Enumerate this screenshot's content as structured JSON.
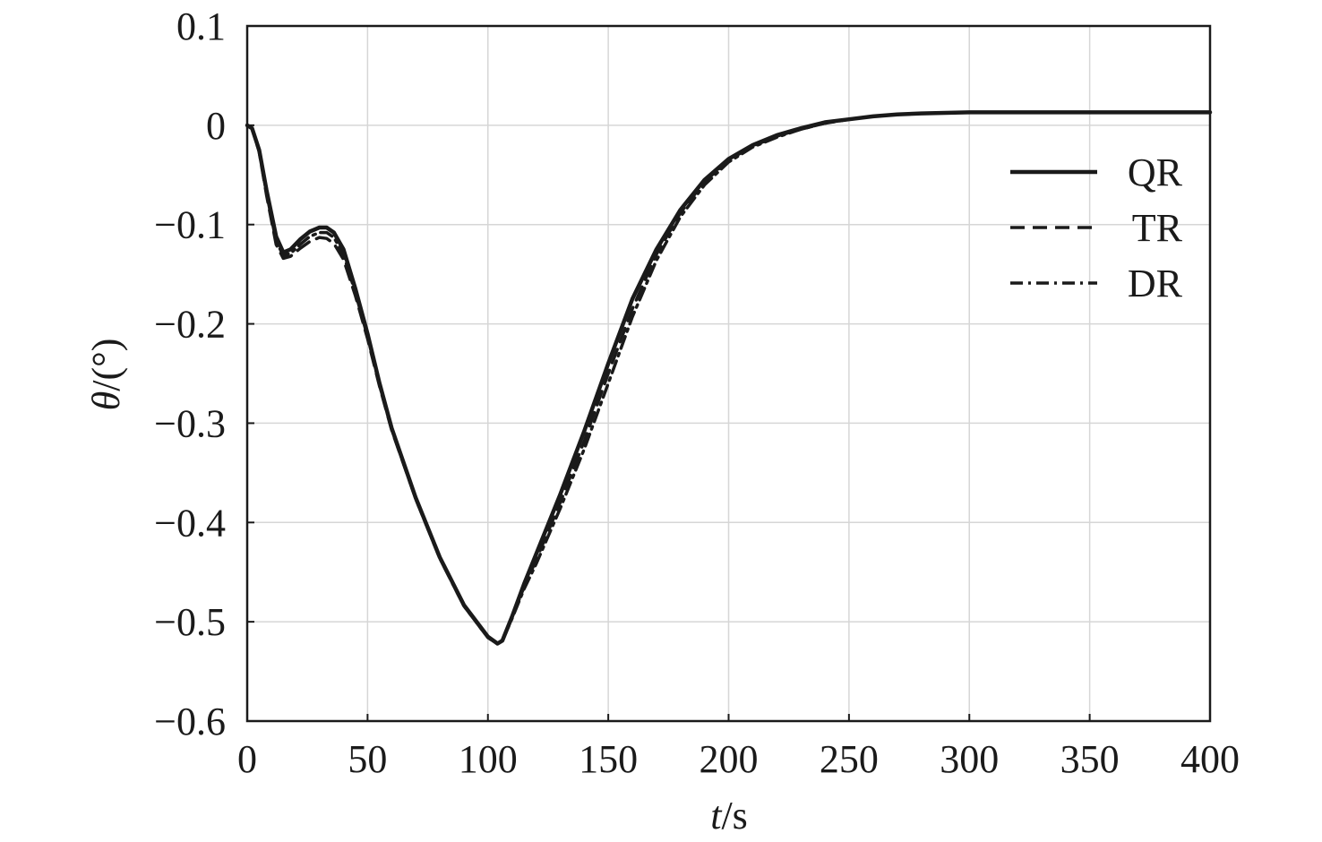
{
  "chart_data": {
    "type": "line",
    "xlabel": {
      "italic": "t",
      "rest": "/s"
    },
    "ylabel": {
      "italic": "θ",
      "rest": "/(°)"
    },
    "xlim": [
      0,
      400
    ],
    "ylim": [
      -0.6,
      0.1
    ],
    "xticks": [
      "0",
      "50",
      "100",
      "150",
      "200",
      "250",
      "300",
      "350",
      "400"
    ],
    "yticks": [
      "0.1",
      "0",
      "−0.1",
      "−0.2",
      "−0.3",
      "−0.4",
      "−0.5",
      "−0.6"
    ],
    "xtick_values": [
      0,
      50,
      100,
      150,
      200,
      250,
      300,
      350,
      400
    ],
    "ytick_values": [
      0.1,
      0,
      -0.1,
      -0.2,
      -0.3,
      -0.4,
      -0.5,
      -0.6
    ],
    "grid": true,
    "legend_position": "top-right",
    "series": [
      {
        "name": "QR",
        "style": "solid",
        "x": [
          0,
          2,
          5,
          8,
          12,
          15,
          18,
          22,
          26,
          30,
          33,
          36,
          40,
          45,
          50,
          55,
          60,
          70,
          80,
          90,
          100,
          104,
          106,
          110,
          115,
          120,
          130,
          140,
          150,
          160,
          170,
          180,
          190,
          200,
          210,
          220,
          230,
          240,
          250,
          260,
          270,
          280,
          300,
          320,
          350,
          400
        ],
        "y": [
          0,
          -0.003,
          -0.025,
          -0.065,
          -0.112,
          -0.128,
          -0.125,
          -0.115,
          -0.107,
          -0.103,
          -0.103,
          -0.108,
          -0.125,
          -0.165,
          -0.21,
          -0.26,
          -0.305,
          -0.375,
          -0.435,
          -0.483,
          -0.515,
          -0.522,
          -0.519,
          -0.495,
          -0.462,
          -0.432,
          -0.372,
          -0.308,
          -0.24,
          -0.175,
          -0.125,
          -0.085,
          -0.055,
          -0.034,
          -0.02,
          -0.01,
          -0.003,
          0.003,
          0.006,
          0.009,
          0.011,
          0.012,
          0.013,
          0.013,
          0.013,
          0.013
        ]
      },
      {
        "name": "TR",
        "style": "dashed",
        "x": [
          0,
          2,
          5,
          8,
          12,
          15,
          18,
          22,
          26,
          30,
          33,
          36,
          40,
          45,
          50,
          55,
          60,
          70,
          80,
          90,
          100,
          104,
          106,
          110,
          115,
          120,
          130,
          140,
          150,
          160,
          170,
          180,
          190,
          200,
          210,
          220,
          230,
          240,
          250,
          260,
          270,
          280,
          300,
          320,
          350,
          400
        ],
        "y": [
          0,
          -0.003,
          -0.027,
          -0.07,
          -0.12,
          -0.134,
          -0.132,
          -0.124,
          -0.117,
          -0.113,
          -0.114,
          -0.119,
          -0.135,
          -0.172,
          -0.215,
          -0.263,
          -0.307,
          -0.376,
          -0.436,
          -0.484,
          -0.516,
          -0.522,
          -0.519,
          -0.496,
          -0.465,
          -0.438,
          -0.38,
          -0.318,
          -0.25,
          -0.185,
          -0.13,
          -0.088,
          -0.057,
          -0.035,
          -0.021,
          -0.011,
          -0.004,
          0.002,
          0.006,
          0.009,
          0.011,
          0.012,
          0.013,
          0.013,
          0.013,
          0.013
        ]
      },
      {
        "name": "DR",
        "style": "dash-dot",
        "x": [
          0,
          2,
          5,
          8,
          12,
          15,
          18,
          22,
          26,
          30,
          33,
          36,
          40,
          45,
          50,
          55,
          60,
          70,
          80,
          90,
          100,
          104,
          106,
          110,
          115,
          120,
          130,
          140,
          150,
          160,
          170,
          180,
          190,
          200,
          210,
          220,
          230,
          240,
          250,
          260,
          270,
          280,
          300,
          320,
          350,
          400
        ],
        "y": [
          0,
          -0.003,
          -0.026,
          -0.068,
          -0.117,
          -0.131,
          -0.129,
          -0.12,
          -0.112,
          -0.108,
          -0.108,
          -0.113,
          -0.13,
          -0.169,
          -0.213,
          -0.262,
          -0.306,
          -0.376,
          -0.436,
          -0.484,
          -0.516,
          -0.522,
          -0.519,
          -0.497,
          -0.467,
          -0.442,
          -0.386,
          -0.326,
          -0.26,
          -0.193,
          -0.136,
          -0.092,
          -0.06,
          -0.037,
          -0.022,
          -0.012,
          -0.004,
          0.002,
          0.006,
          0.009,
          0.011,
          0.012,
          0.013,
          0.013,
          0.013,
          0.013
        ]
      }
    ]
  }
}
